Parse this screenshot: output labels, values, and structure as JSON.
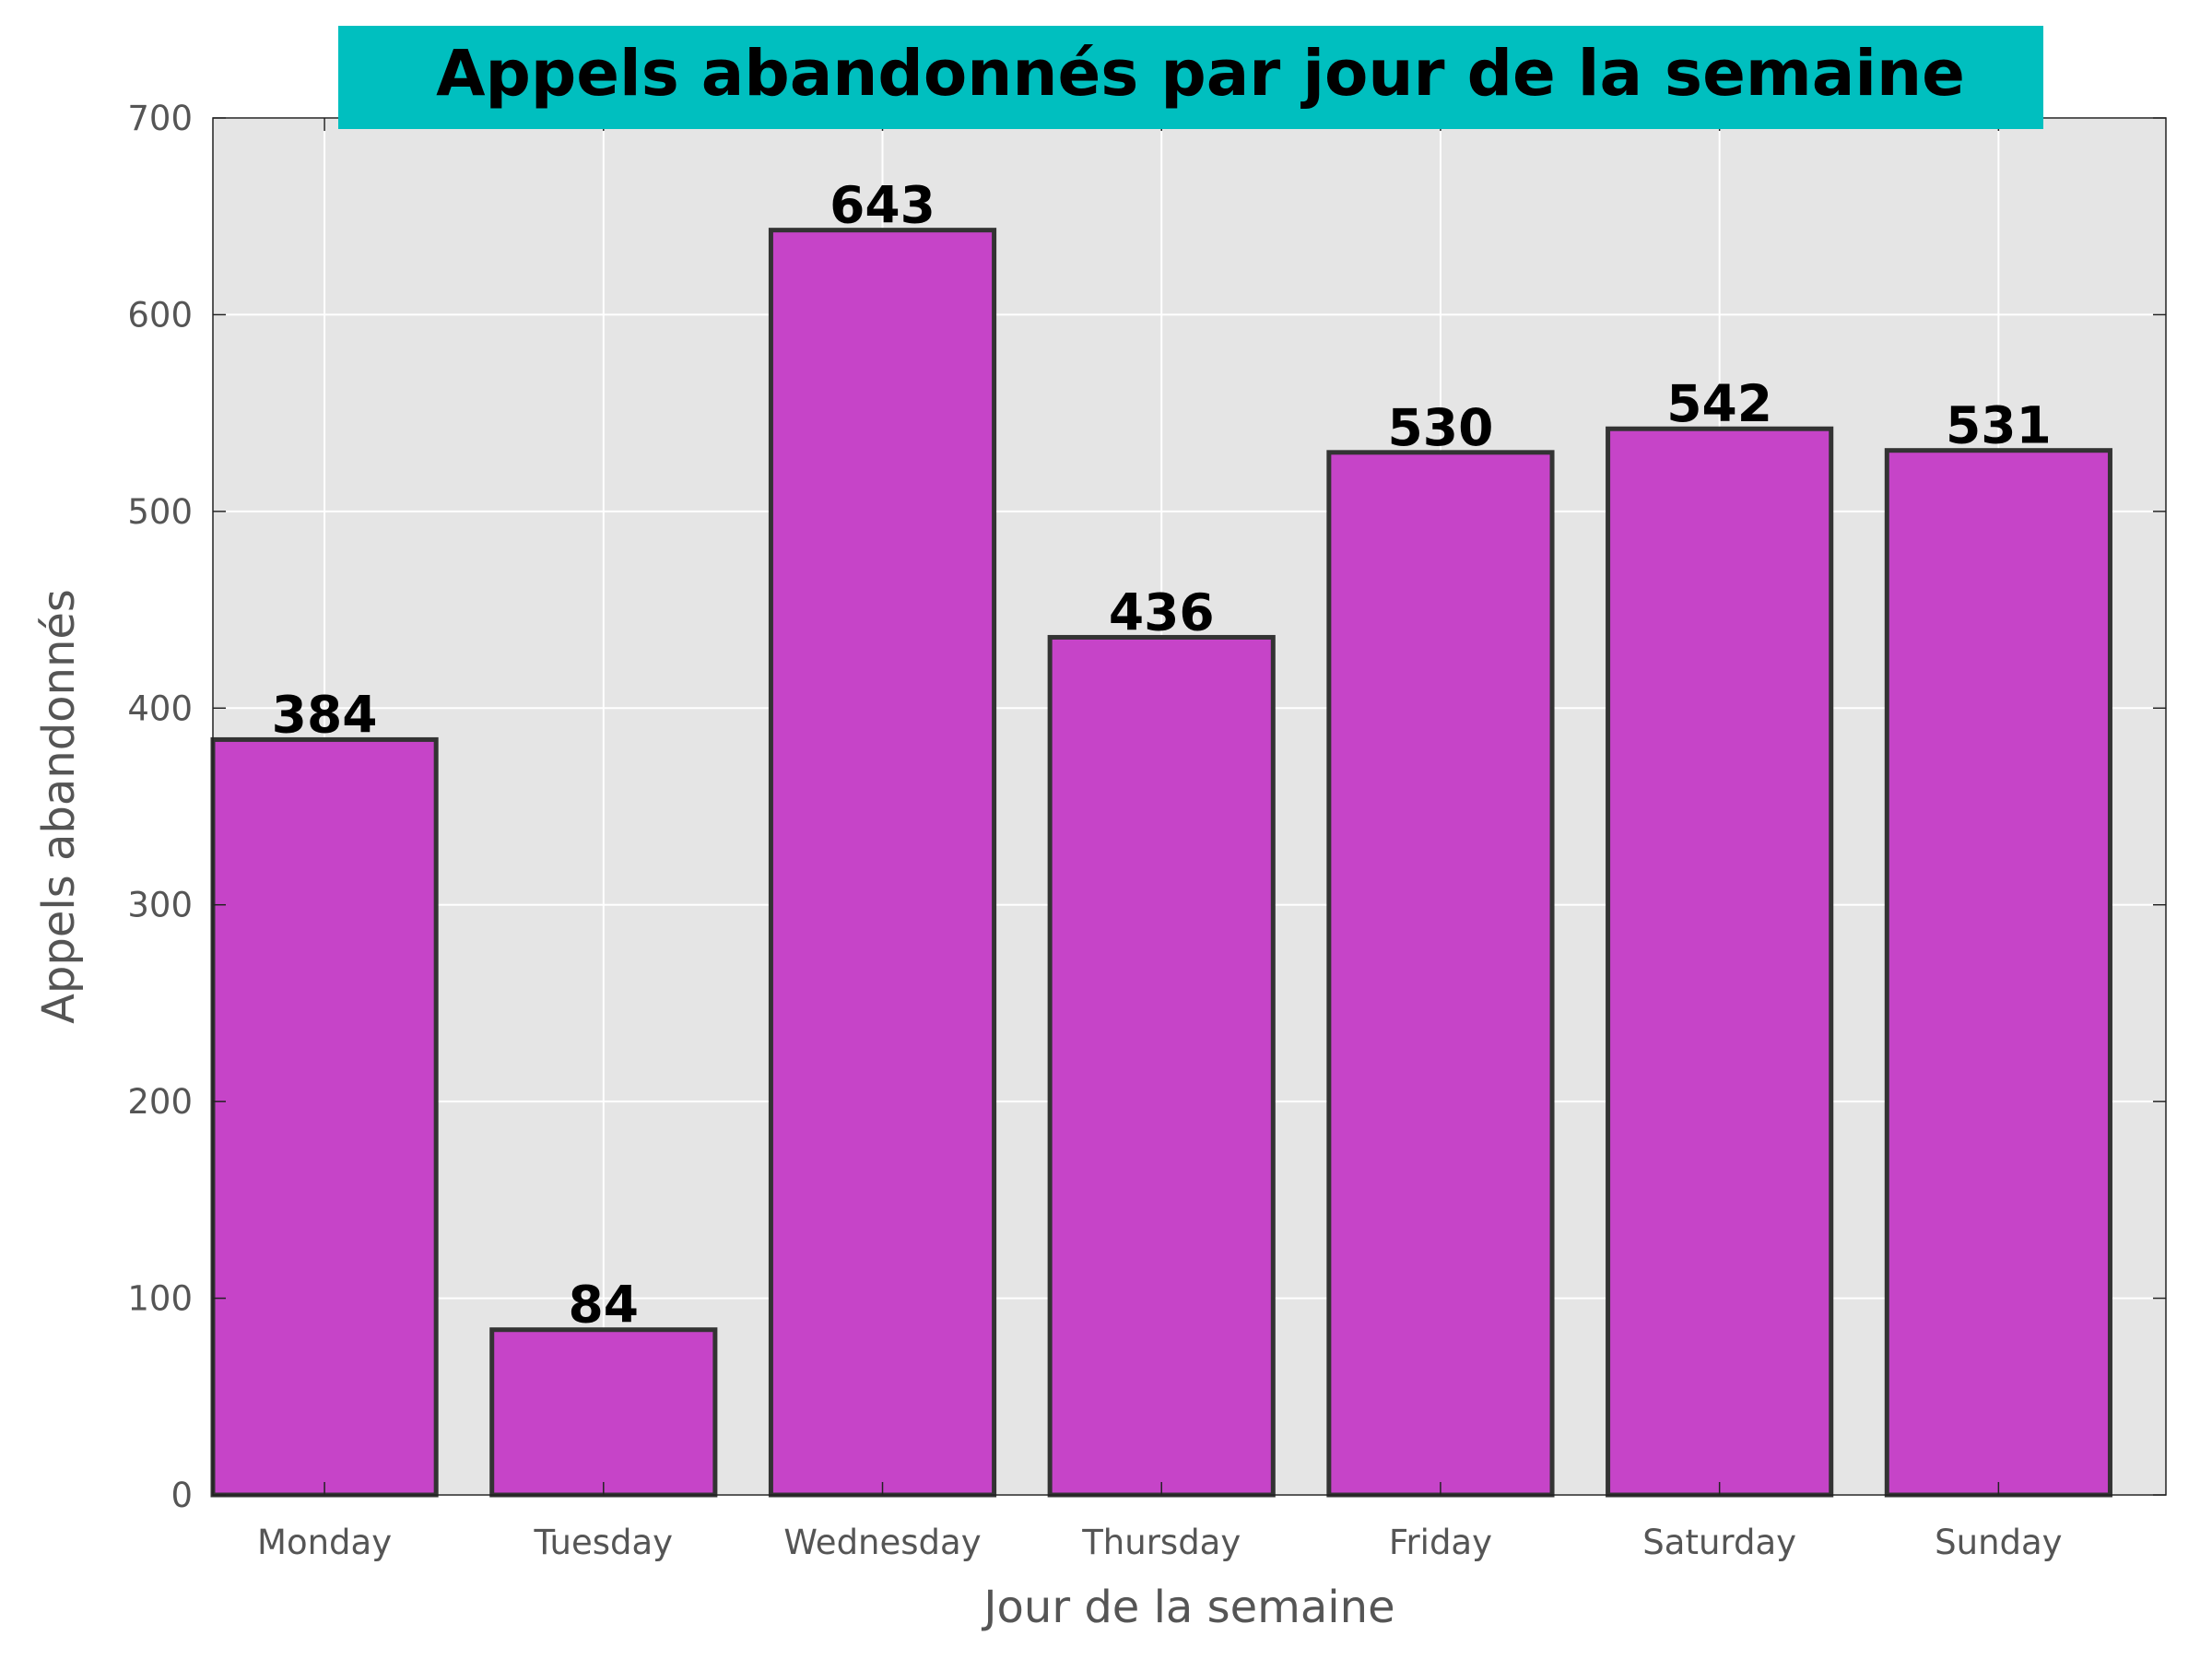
{
  "chart_data": {
    "type": "bar",
    "title": "Appels abandonnés par jour de la semaine",
    "xlabel": "Jour de la semaine",
    "ylabel": "Appels abandonnés",
    "categories": [
      "Monday",
      "Tuesday",
      "Wednesday",
      "Thursday",
      "Friday",
      "Saturday",
      "Sunday"
    ],
    "values": [
      384,
      84,
      643,
      436,
      530,
      542,
      531
    ],
    "data_labels": [
      "384",
      "84",
      "643",
      "436",
      "530",
      "542",
      "531"
    ],
    "ylim": [
      0,
      700
    ],
    "yticks": [
      0,
      100,
      200,
      300,
      400,
      500,
      600,
      700
    ],
    "ytick_labels": [
      "0",
      "100",
      "200",
      "300",
      "400",
      "500",
      "600",
      "700"
    ],
    "grid": true,
    "legend": "none"
  },
  "colors": {
    "bar_fill": "#c644c8",
    "bar_edge": "#333333",
    "plot_background": "#e5e5e5",
    "grid": "#ffffff",
    "title_background": "#00bfbf",
    "tick_text": "#555555",
    "value_text": "#000000"
  }
}
